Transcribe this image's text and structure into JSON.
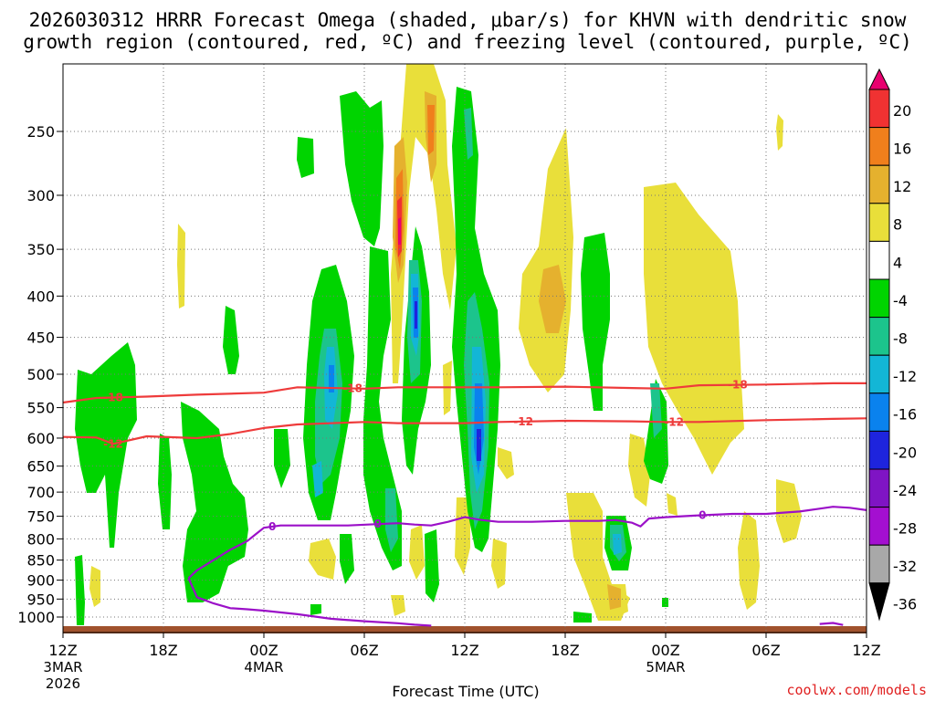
{
  "chart_data": {
    "type": "time-height contour",
    "title_line1": "2026030312 HRRR Forecast Omega (shaded, μbar/s) for KHVN with dendritic snow",
    "title_line2": "growth region (contoured, red, ºC) and freezing level (contoured, purple, ºC)",
    "xlabel": "Forecast Time (UTC)",
    "x_ticks": [
      {
        "hour": 0,
        "label": "12Z",
        "date": "3MAR",
        "year": "2026"
      },
      {
        "hour": 6,
        "label": "18Z"
      },
      {
        "hour": 12,
        "label": "00Z",
        "date": "4MAR"
      },
      {
        "hour": 18,
        "label": "06Z"
      },
      {
        "hour": 24,
        "label": "12Z"
      },
      {
        "hour": 30,
        "label": "18Z"
      },
      {
        "hour": 36,
        "label": "00Z",
        "date": "5MAR"
      },
      {
        "hour": 42,
        "label": "06Z"
      },
      {
        "hour": 48,
        "label": "12Z"
      }
    ],
    "y_ticks": [
      250,
      300,
      350,
      400,
      450,
      500,
      550,
      600,
      650,
      700,
      750,
      800,
      850,
      900,
      950,
      1000
    ],
    "ylim_hpa": [
      200,
      1030
    ],
    "xlim_hours": [
      0,
      48
    ],
    "colorbar": {
      "labels": [
        "20",
        "16",
        "12",
        "8",
        "4",
        "-4",
        "-8",
        "-12",
        "-16",
        "-20",
        "-24",
        "-28",
        "-32",
        "-36"
      ],
      "colors": [
        "#e8006f",
        "#f03232",
        "#f07f1c",
        "#e5b12e",
        "#e9df3a",
        "#ffffff",
        "#00d400",
        "#1cc48c",
        "#13b6d6",
        "#0a82ee",
        "#1e24dd",
        "#7f14c4",
        "#a40fd0",
        "#a8a8a8",
        "#000000"
      ]
    },
    "series": [
      {
        "name": "-18 °C isotherm",
        "color": "#ee3b3b",
        "label": "-18",
        "hours": [
          0,
          2,
          5,
          8,
          12,
          14,
          18,
          20,
          24,
          26,
          30,
          34,
          36,
          38,
          42,
          46,
          48
        ],
        "pressure": [
          542,
          535,
          533,
          530,
          527,
          519,
          521,
          519,
          519,
          519,
          518,
          520,
          521,
          516,
          515,
          513,
          513
        ]
      },
      {
        "name": "-12 °C isotherm",
        "color": "#ee3b3b",
        "label": "-12",
        "hours": [
          0,
          2,
          3,
          5,
          8,
          10,
          12,
          14,
          18,
          20,
          24,
          26,
          30,
          34,
          36,
          38,
          42,
          46,
          48
        ],
        "pressure": [
          598,
          599,
          610,
          597,
          600,
          593,
          583,
          577,
          573,
          575,
          575,
          573,
          571,
          572,
          573,
          573,
          570,
          568,
          567
        ]
      },
      {
        "name": "0 °C freezing level",
        "color": "#9b10c8",
        "label": "0",
        "hours": [
          7.5,
          8,
          9,
          10,
          11,
          11.5,
          12,
          13,
          15,
          17,
          20,
          21,
          22,
          23,
          24,
          25,
          26,
          28,
          30,
          32,
          33,
          34,
          34.5,
          35,
          36,
          38,
          40,
          42,
          44,
          45,
          46,
          47,
          48
        ],
        "pressure": [
          895,
          875,
          850,
          825,
          805,
          790,
          775,
          770,
          770,
          770,
          765,
          768,
          770,
          762,
          752,
          758,
          762,
          762,
          760,
          760,
          758,
          764,
          772,
          755,
          752,
          748,
          745,
          745,
          740,
          735,
          730,
          732,
          737
        ]
      },
      {
        "name": "0 °C lower branch",
        "color": "#9b10c8",
        "label": "",
        "hours": [
          7.5,
          8,
          9,
          10,
          11,
          12,
          14,
          16,
          18,
          20,
          21,
          22
        ],
        "pressure": [
          895,
          945,
          962,
          975,
          978,
          982,
          992,
          1005,
          1012,
          1018,
          1022,
          1025
        ]
      },
      {
        "name": "0 °C small loop",
        "color": "#9b10c8",
        "label": "",
        "hours": [
          45.2,
          46,
          46.6
        ],
        "pressure": [
          1020,
          1017,
          1023
        ]
      }
    ]
  },
  "credit": "coolwx.com/models"
}
